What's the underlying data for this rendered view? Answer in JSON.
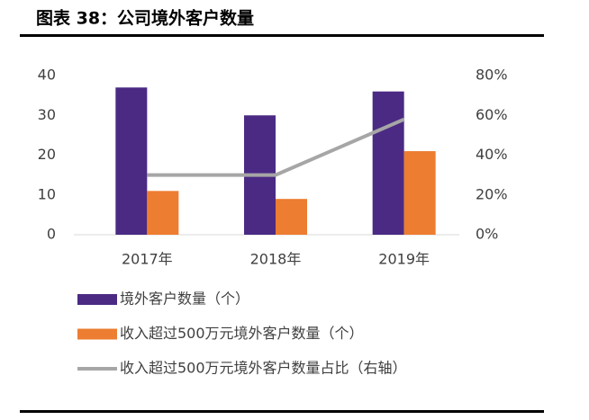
{
  "chart_data": {
    "type": "bar",
    "title": "图表 38：公司境外客户数量",
    "categories": [
      "2017年",
      "2018年",
      "2019年"
    ],
    "series": [
      {
        "name": "境外客户数量（个）",
        "color": "#4b2a84",
        "values": [
          37,
          30,
          36
        ]
      },
      {
        "name": "收入超过500万元境外客户数量（个）",
        "color": "#ed7d31",
        "values": [
          11,
          9,
          21
        ]
      },
      {
        "name": "收入超过500万元境外客户数量占比（右轴）",
        "color": "#a6a6a6",
        "type": "line",
        "axis": "y2",
        "values": [
          30,
          30,
          58
        ]
      }
    ],
    "ylim": [
      0,
      40
    ],
    "yticks": [
      0,
      10,
      20,
      30,
      40
    ],
    "y2lim": [
      0,
      80
    ],
    "y2ticks": [
      {
        "value": 0,
        "label": "0%"
      },
      {
        "value": 20,
        "label": "20%"
      },
      {
        "value": 40,
        "label": "40%"
      },
      {
        "value": 60,
        "label": "60%"
      },
      {
        "value": 80,
        "label": "80%"
      }
    ],
    "grid": false,
    "legend": "bottom"
  }
}
